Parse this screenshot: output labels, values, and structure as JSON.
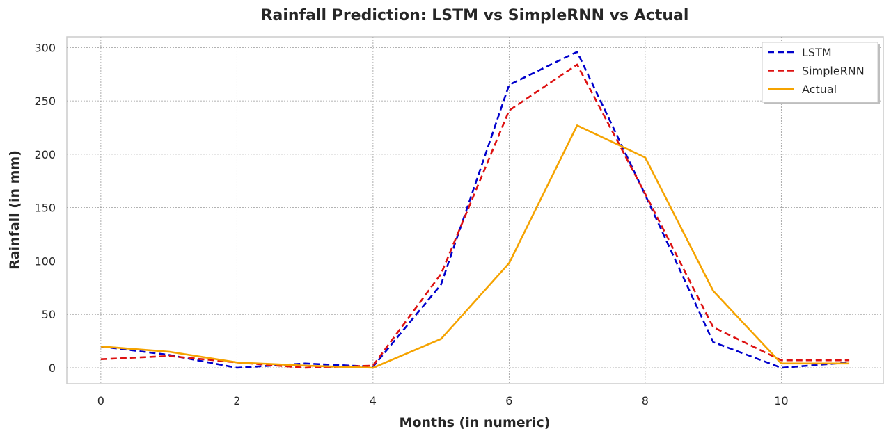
{
  "chart_data": {
    "type": "line",
    "title": "Rainfall Prediction: LSTM vs SimpleRNN vs Actual",
    "xlabel": "Months (in numeric)",
    "ylabel": "Rainfall (in mm)",
    "xlim": [
      -0.5,
      11.5
    ],
    "ylim": [
      -15,
      310
    ],
    "xticks": [
      0,
      2,
      4,
      6,
      8,
      10
    ],
    "yticks": [
      0,
      50,
      100,
      150,
      200,
      250,
      300
    ],
    "grid": true,
    "legend_position": "top-right",
    "x": [
      0,
      1,
      2,
      3,
      4,
      5,
      6,
      7,
      8,
      9,
      10,
      11
    ],
    "series": [
      {
        "name": "LSTM",
        "style": "dashed",
        "color": "#0000cc",
        "values": [
          20,
          12,
          0,
          4,
          1,
          78,
          265,
          296,
          162,
          24,
          0,
          5
        ]
      },
      {
        "name": "SimpleRNN",
        "style": "dashed",
        "color": "#dd1111",
        "values": [
          8,
          11,
          5,
          0,
          2,
          88,
          241,
          284,
          163,
          38,
          7,
          7
        ]
      },
      {
        "name": "Actual",
        "style": "solid",
        "color": "#f5a300",
        "values": [
          20,
          15,
          5,
          2,
          0,
          27,
          98,
          227,
          197,
          72,
          4,
          4
        ]
      }
    ]
  }
}
